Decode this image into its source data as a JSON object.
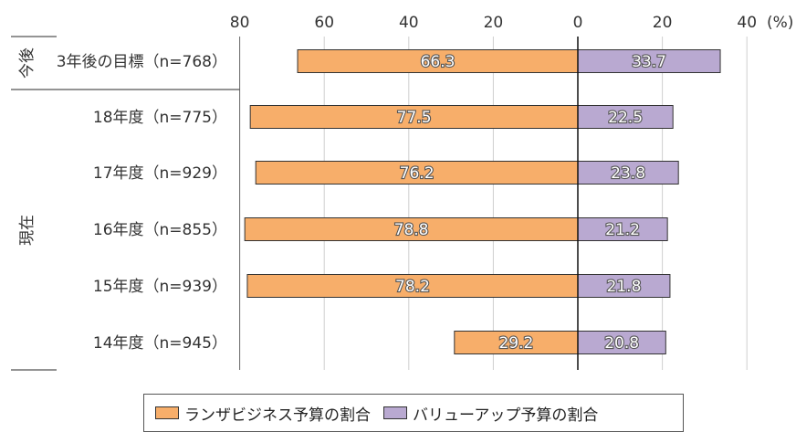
{
  "chart_data": {
    "type": "bar",
    "orientation": "horizontal-diverging",
    "unit": "(%)",
    "groups": [
      {
        "label": "今後",
        "categories": [
          "3年後の目標（n=768）"
        ]
      },
      {
        "label": "現在",
        "categories": [
          "18年度（n=775）",
          "17年度（n=929）",
          "16年度（n=855）",
          "15年度（n=939）",
          "14年度（n=945）"
        ]
      }
    ],
    "categories": [
      "3年後の目標（n=768）",
      "18年度（n=775）",
      "17年度（n=929）",
      "16年度（n=855）",
      "15年度（n=939）",
      "14年度（n=945）"
    ],
    "series": [
      {
        "name": "ランザビジネス予算の割合",
        "direction": "left",
        "color": "#F7AE6A",
        "values": [
          66.3,
          77.5,
          76.2,
          78.8,
          78.2,
          29.2
        ],
        "labels": [
          "66.3",
          "77.5",
          "76.2",
          "78.8",
          "78.2",
          "29.2"
        ]
      },
      {
        "name": "バリューアップ予算の割合",
        "direction": "right",
        "color": "#B9A9D1",
        "values": [
          33.7,
          22.5,
          23.8,
          21.2,
          21.8,
          20.8
        ],
        "labels": [
          "33.7",
          "22.5",
          "23.8",
          "21.2",
          "21.8",
          "20.8"
        ]
      }
    ],
    "x_ticks": [
      {
        "value": -80,
        "label": "80"
      },
      {
        "value": -60,
        "label": "60"
      },
      {
        "value": -40,
        "label": "40"
      },
      {
        "value": -20,
        "label": "20"
      },
      {
        "value": 0,
        "label": "0"
      },
      {
        "value": 20,
        "label": "20"
      },
      {
        "value": 40,
        "label": "40"
      }
    ],
    "xlim": [
      -80,
      40
    ],
    "grid": "vertical",
    "legend_position": "bottom"
  }
}
